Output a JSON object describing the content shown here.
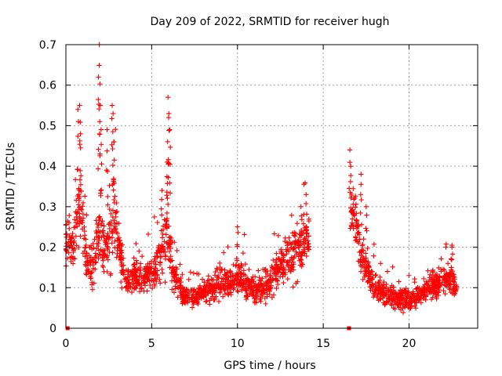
{
  "chart_data": {
    "type": "scatter",
    "title": "Day 209 of 2022, SRMTID for receiver hugh",
    "xlabel": "GPS time / hours",
    "ylabel": "SRMTID / TECUs",
    "xlim": [
      0,
      24
    ],
    "ylim": [
      0,
      0.7
    ],
    "x_ticks": [
      0,
      5,
      10,
      15,
      20
    ],
    "x_tick_labels": [
      "0",
      "5",
      "10",
      "15",
      "20"
    ],
    "y_ticks": [
      0,
      0.1,
      0.2,
      0.3,
      0.4,
      0.5,
      0.6,
      0.7
    ],
    "y_tick_labels": [
      "0",
      "0.1",
      "0.2",
      "0.3",
      "0.4",
      "0.5",
      "0.6",
      "0.7"
    ],
    "grid": true,
    "marker": "plus",
    "color": "#ff0000",
    "series": [
      {
        "name": "SRMTID",
        "notes": "dense point cloud; representative trend values (mean level, spread, occasional spikes) per interval",
        "profile": [
          [
            0.0,
            0.22,
            0.08
          ],
          [
            0.4,
            0.2,
            0.07
          ],
          [
            0.7,
            0.28,
            0.12
          ],
          [
            0.9,
            0.3,
            0.12
          ],
          [
            1.2,
            0.16,
            0.06
          ],
          [
            1.6,
            0.15,
            0.06
          ],
          [
            2.0,
            0.25,
            0.12
          ],
          [
            2.2,
            0.2,
            0.08
          ],
          [
            2.6,
            0.22,
            0.1
          ],
          [
            2.9,
            0.28,
            0.12
          ],
          [
            3.1,
            0.18,
            0.07
          ],
          [
            3.5,
            0.12,
            0.04
          ],
          [
            4.0,
            0.13,
            0.05
          ],
          [
            4.5,
            0.12,
            0.04
          ],
          [
            5.0,
            0.14,
            0.05
          ],
          [
            5.5,
            0.16,
            0.07
          ],
          [
            5.9,
            0.24,
            0.12
          ],
          [
            6.2,
            0.14,
            0.06
          ],
          [
            6.8,
            0.08,
            0.03
          ],
          [
            7.5,
            0.08,
            0.03
          ],
          [
            8.5,
            0.1,
            0.04
          ],
          [
            9.5,
            0.11,
            0.04
          ],
          [
            10.0,
            0.13,
            0.05
          ],
          [
            10.5,
            0.11,
            0.04
          ],
          [
            11.0,
            0.09,
            0.04
          ],
          [
            11.5,
            0.1,
            0.04
          ],
          [
            12.0,
            0.12,
            0.05
          ],
          [
            12.5,
            0.16,
            0.06
          ],
          [
            13.0,
            0.18,
            0.07
          ],
          [
            13.5,
            0.19,
            0.07
          ],
          [
            14.0,
            0.22,
            0.08
          ],
          [
            14.2,
            0.22,
            0.08
          ],
          [
            16.6,
            0.3,
            0.08
          ],
          [
            16.9,
            0.26,
            0.08
          ],
          [
            17.2,
            0.18,
            0.07
          ],
          [
            17.6,
            0.14,
            0.05
          ],
          [
            18.0,
            0.1,
            0.04
          ],
          [
            18.5,
            0.09,
            0.03
          ],
          [
            19.0,
            0.08,
            0.03
          ],
          [
            19.5,
            0.07,
            0.03
          ],
          [
            20.0,
            0.07,
            0.03
          ],
          [
            20.5,
            0.08,
            0.03
          ],
          [
            21.0,
            0.09,
            0.03
          ],
          [
            21.5,
            0.1,
            0.04
          ],
          [
            22.0,
            0.12,
            0.04
          ],
          [
            22.5,
            0.12,
            0.04
          ],
          [
            22.8,
            0.1,
            0.03
          ]
        ],
        "spikes": [
          [
            0.7,
            0.54
          ],
          [
            0.8,
            0.55
          ],
          [
            0.85,
            0.48
          ],
          [
            1.95,
            0.7
          ],
          [
            1.9,
            0.62
          ],
          [
            2.0,
            0.55
          ],
          [
            2.05,
            0.49
          ],
          [
            2.4,
            0.49
          ],
          [
            2.7,
            0.55
          ],
          [
            2.75,
            0.53
          ],
          [
            2.8,
            0.46
          ],
          [
            5.6,
            0.34
          ],
          [
            5.95,
            0.57
          ],
          [
            6.0,
            0.53
          ],
          [
            6.05,
            0.49
          ],
          [
            5.9,
            0.41
          ],
          [
            10.0,
            0.25
          ],
          [
            14.0,
            0.33
          ],
          [
            13.7,
            0.3
          ],
          [
            16.55,
            0.44
          ],
          [
            16.6,
            0.4
          ],
          [
            17.5,
            0.3
          ],
          [
            17.2,
            0.38
          ],
          [
            22.5,
            0.2
          ]
        ],
        "zero_markers": [
          [
            0.1,
            0.0
          ],
          [
            16.5,
            0.0
          ]
        ]
      }
    ]
  }
}
